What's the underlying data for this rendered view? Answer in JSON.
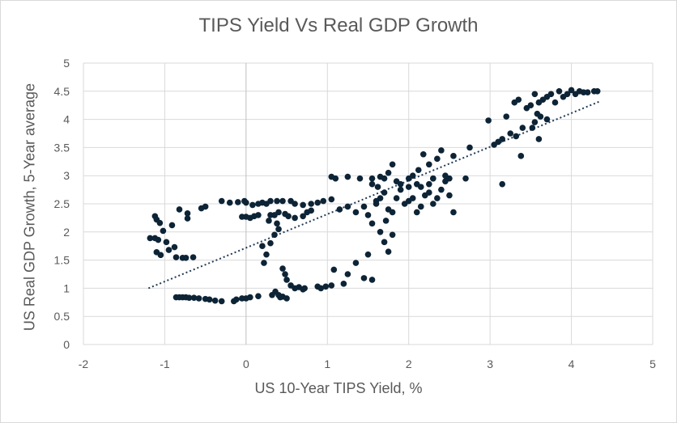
{
  "chart_data": {
    "type": "scatter",
    "title": "TIPS Yield Vs Real GDP Growth",
    "xlabel": "US 10-Year TIPS Yield, %",
    "ylabel": "US Real GDP Growth, 5-Year average",
    "xlim": [
      -2,
      5
    ],
    "ylim": [
      0,
      5
    ],
    "xticks": [
      "-2",
      "-1",
      "0",
      "1",
      "2",
      "3",
      "4",
      "5"
    ],
    "yticks": [
      "0",
      "0.5",
      "1",
      "1.5",
      "2",
      "2.5",
      "3",
      "3.5",
      "4",
      "4.5",
      "5"
    ],
    "grid": "vertical and horizontal major gridlines",
    "marker_color": "#0d2436",
    "trendline": {
      "style": "dotted",
      "color": "#1f3a55",
      "points": [
        [
          -1.2,
          1.0
        ],
        [
          4.35,
          4.32
        ]
      ]
    },
    "series": [
      {
        "points": [
          [
            -1.18,
            1.89
          ],
          [
            -1.12,
            1.89
          ],
          [
            -1.12,
            2.28
          ],
          [
            -1.1,
            2.22
          ],
          [
            -1.06,
            2.16
          ],
          [
            -1.02,
            2.02
          ],
          [
            -0.98,
            1.82
          ],
          [
            -0.95,
            1.68
          ],
          [
            -0.91,
            2.12
          ],
          [
            -0.88,
            1.73
          ],
          [
            -0.86,
            1.55
          ],
          [
            -1.1,
            1.64
          ],
          [
            -1.05,
            1.59
          ],
          [
            -0.78,
            1.54
          ],
          [
            -0.74,
            1.54
          ],
          [
            -0.82,
            2.4
          ],
          [
            -0.72,
            2.33
          ],
          [
            -0.72,
            2.24
          ],
          [
            -0.65,
            1.55
          ],
          [
            -1.08,
            1.86
          ],
          [
            -0.86,
            0.84
          ],
          [
            -0.82,
            0.84
          ],
          [
            -0.78,
            0.84
          ],
          [
            -0.74,
            0.84
          ],
          [
            -0.7,
            0.83
          ],
          [
            -0.64,
            0.83
          ],
          [
            -0.58,
            0.82
          ],
          [
            -0.5,
            0.81
          ],
          [
            -0.45,
            0.8
          ],
          [
            -0.38,
            0.78
          ],
          [
            -0.3,
            0.77
          ],
          [
            -0.15,
            0.77
          ],
          [
            -0.12,
            0.8
          ],
          [
            -0.05,
            0.82
          ],
          [
            0.0,
            0.82
          ],
          [
            0.05,
            0.84
          ],
          [
            0.15,
            0.86
          ],
          [
            0.32,
            0.88
          ],
          [
            0.36,
            0.94
          ],
          [
            0.4,
            0.88
          ],
          [
            0.42,
            0.84
          ],
          [
            0.45,
            0.85
          ],
          [
            0.5,
            0.82
          ],
          [
            -0.55,
            2.42
          ],
          [
            -0.5,
            2.45
          ],
          [
            -0.3,
            2.55
          ],
          [
            -0.2,
            2.52
          ],
          [
            -0.1,
            2.53
          ],
          [
            -0.02,
            2.55
          ],
          [
            0.0,
            2.52
          ],
          [
            0.08,
            2.48
          ],
          [
            0.15,
            2.5
          ],
          [
            0.2,
            2.52
          ],
          [
            0.25,
            2.5
          ],
          [
            0.3,
            2.55
          ],
          [
            0.38,
            2.55
          ],
          [
            0.45,
            2.55
          ],
          [
            0.55,
            2.55
          ],
          [
            0.6,
            2.5
          ],
          [
            0.7,
            2.48
          ],
          [
            0.8,
            2.5
          ],
          [
            0.88,
            2.52
          ],
          [
            0.95,
            2.55
          ],
          [
            1.05,
            2.58
          ],
          [
            -0.05,
            2.27
          ],
          [
            0.0,
            2.27
          ],
          [
            0.05,
            2.25
          ],
          [
            0.1,
            2.28
          ],
          [
            0.15,
            2.3
          ],
          [
            0.3,
            2.3
          ],
          [
            0.35,
            2.3
          ],
          [
            0.4,
            2.35
          ],
          [
            0.48,
            2.32
          ],
          [
            0.52,
            2.28
          ],
          [
            0.6,
            2.25
          ],
          [
            0.7,
            2.28
          ],
          [
            0.75,
            2.35
          ],
          [
            0.8,
            2.38
          ],
          [
            0.28,
            2.2
          ],
          [
            0.38,
            2.15
          ],
          [
            0.2,
            1.75
          ],
          [
            0.25,
            1.6
          ],
          [
            0.3,
            1.8
          ],
          [
            0.35,
            1.95
          ],
          [
            0.4,
            2.05
          ],
          [
            0.22,
            1.45
          ],
          [
            0.45,
            1.35
          ],
          [
            0.48,
            1.25
          ],
          [
            0.5,
            1.15
          ],
          [
            0.55,
            1.05
          ],
          [
            0.6,
            1.0
          ],
          [
            0.65,
            1.02
          ],
          [
            0.7,
            0.98
          ],
          [
            0.72,
            1.0
          ],
          [
            0.88,
            1.03
          ],
          [
            0.92,
            1.0
          ],
          [
            0.98,
            1.03
          ],
          [
            1.05,
            1.05
          ],
          [
            1.08,
            1.33
          ],
          [
            1.2,
            1.08
          ],
          [
            1.25,
            1.25
          ],
          [
            1.35,
            1.45
          ],
          [
            1.45,
            1.18
          ],
          [
            1.55,
            1.15
          ],
          [
            1.5,
            1.6
          ],
          [
            1.05,
            2.98
          ],
          [
            1.1,
            2.95
          ],
          [
            1.25,
            2.98
          ],
          [
            1.4,
            2.95
          ],
          [
            1.55,
            2.95
          ],
          [
            1.65,
            2.98
          ],
          [
            1.7,
            2.95
          ],
          [
            1.75,
            3.05
          ],
          [
            1.8,
            3.2
          ],
          [
            1.9,
            2.85
          ],
          [
            2.0,
            2.95
          ],
          [
            2.05,
            3.0
          ],
          [
            2.12,
            3.1
          ],
          [
            2.18,
            3.38
          ],
          [
            2.25,
            3.2
          ],
          [
            2.3,
            2.95
          ],
          [
            2.35,
            3.3
          ],
          [
            2.4,
            3.45
          ],
          [
            2.45,
            3.0
          ],
          [
            2.5,
            2.95
          ],
          [
            2.55,
            3.35
          ],
          [
            2.7,
            2.95
          ],
          [
            1.15,
            2.4
          ],
          [
            1.25,
            2.45
          ],
          [
            1.35,
            2.35
          ],
          [
            1.45,
            2.45
          ],
          [
            1.5,
            2.3
          ],
          [
            1.55,
            2.15
          ],
          [
            1.6,
            2.5
          ],
          [
            1.65,
            2.6
          ],
          [
            1.7,
            2.7
          ],
          [
            1.75,
            2.4
          ],
          [
            1.8,
            2.35
          ],
          [
            1.85,
            2.6
          ],
          [
            1.9,
            2.75
          ],
          [
            1.95,
            2.5
          ],
          [
            2.0,
            2.8
          ],
          [
            2.05,
            2.6
          ],
          [
            2.1,
            2.35
          ],
          [
            2.15,
            2.8
          ],
          [
            2.2,
            2.65
          ],
          [
            2.25,
            2.85
          ],
          [
            2.3,
            2.5
          ],
          [
            2.35,
            2.6
          ],
          [
            2.4,
            2.75
          ],
          [
            2.45,
            2.9
          ],
          [
            2.5,
            2.65
          ],
          [
            2.55,
            2.35
          ],
          [
            1.7,
            1.82
          ],
          [
            1.75,
            1.65
          ],
          [
            1.8,
            1.95
          ],
          [
            1.72,
            2.2
          ],
          [
            1.65,
            2.0
          ],
          [
            1.6,
            2.55
          ],
          [
            1.62,
            2.8
          ],
          [
            2.0,
            2.55
          ],
          [
            2.1,
            2.85
          ],
          [
            2.25,
            2.7
          ],
          [
            2.15,
            2.45
          ],
          [
            2.3,
            2.95
          ],
          [
            1.55,
            2.85
          ],
          [
            1.85,
            2.9
          ],
          [
            2.75,
            3.5
          ],
          [
            2.98,
            3.98
          ],
          [
            3.05,
            3.55
          ],
          [
            3.1,
            3.6
          ],
          [
            3.15,
            3.65
          ],
          [
            3.15,
            2.85
          ],
          [
            3.2,
            4.05
          ],
          [
            3.25,
            3.75
          ],
          [
            3.3,
            4.3
          ],
          [
            3.35,
            4.35
          ],
          [
            3.32,
            3.7
          ],
          [
            3.38,
            3.35
          ],
          [
            3.4,
            3.85
          ],
          [
            3.45,
            4.2
          ],
          [
            3.5,
            4.25
          ],
          [
            3.55,
            4.45
          ],
          [
            3.55,
            3.95
          ],
          [
            3.6,
            4.3
          ],
          [
            3.6,
            3.65
          ],
          [
            3.62,
            4.05
          ],
          [
            3.65,
            4.35
          ],
          [
            3.7,
            4.4
          ],
          [
            3.7,
            4.0
          ],
          [
            3.75,
            4.45
          ],
          [
            3.8,
            4.3
          ],
          [
            3.85,
            4.5
          ],
          [
            3.9,
            4.4
          ],
          [
            3.95,
            4.45
          ],
          [
            4.0,
            4.52
          ],
          [
            4.05,
            4.45
          ],
          [
            4.1,
            4.5
          ],
          [
            4.15,
            4.48
          ],
          [
            4.2,
            4.48
          ],
          [
            4.28,
            4.5
          ],
          [
            4.32,
            4.5
          ],
          [
            3.58,
            4.1
          ],
          [
            3.52,
            3.85
          ]
        ]
      }
    ]
  }
}
